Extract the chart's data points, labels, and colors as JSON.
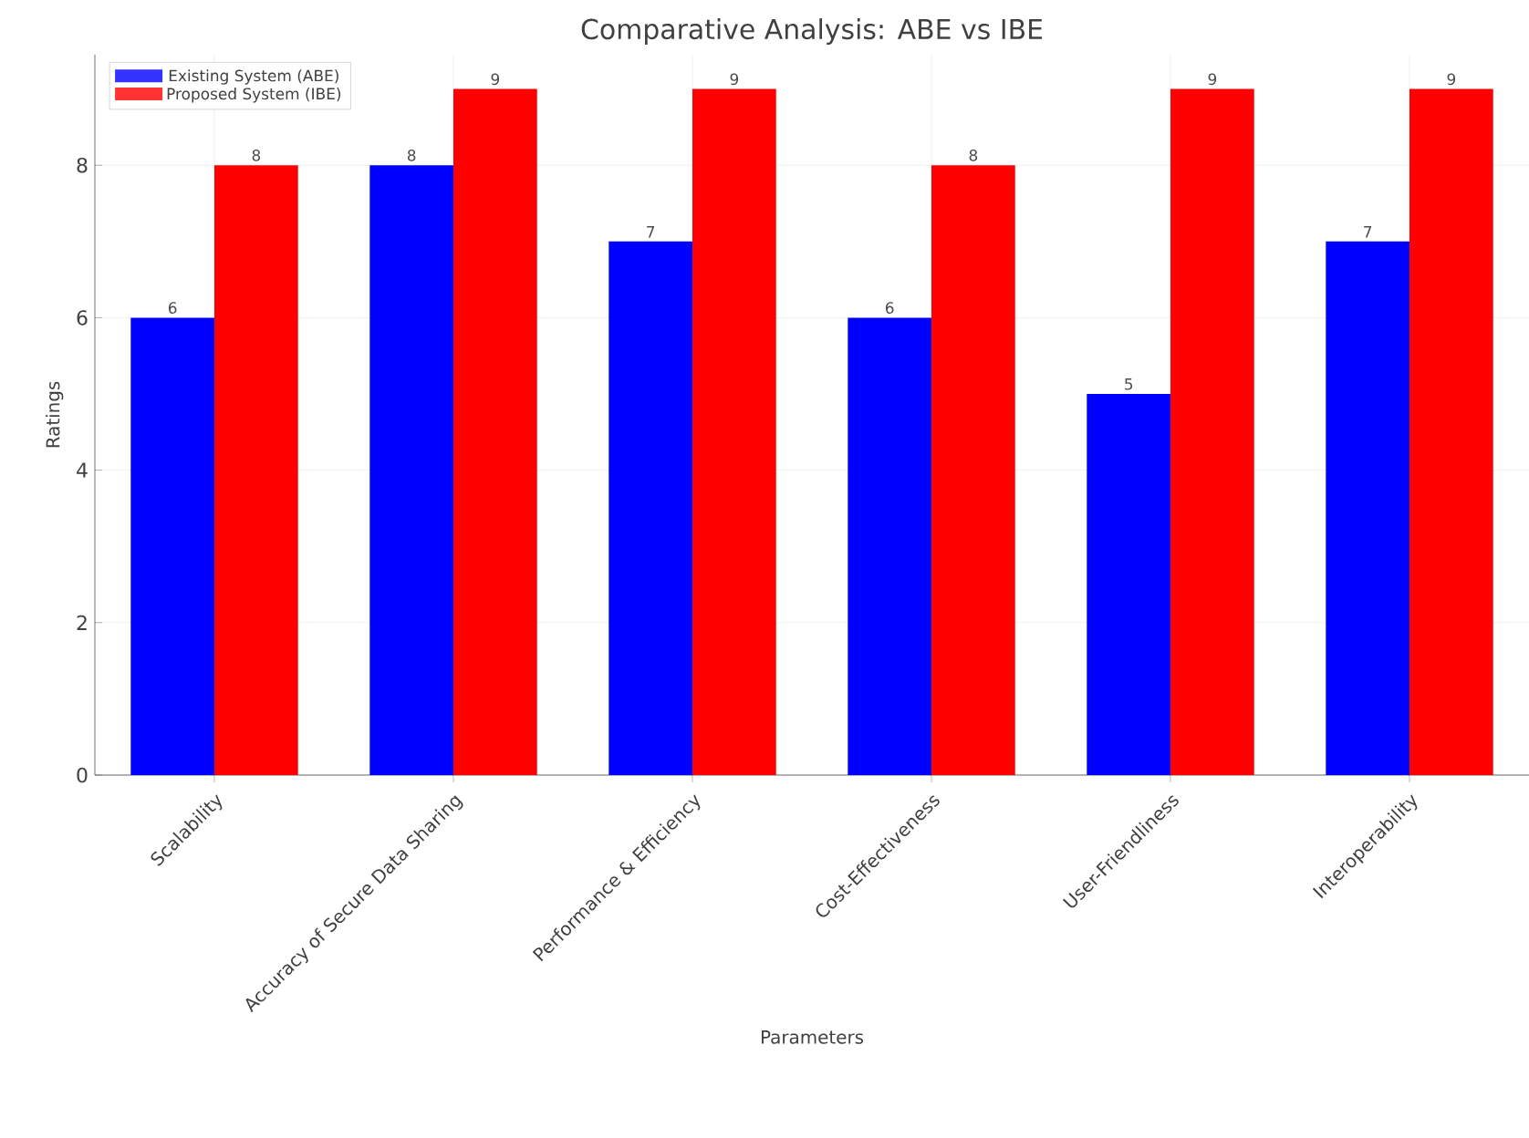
{
  "chart_data": {
    "type": "bar",
    "title": "Comparative Analysis: ABE vs IBE",
    "xlabel": "Parameters",
    "ylabel": "Ratings",
    "categories": [
      "Scalability",
      "Accuracy of Secure Data Sharing",
      "Performance & Efficiency",
      "Cost-Effectiveness",
      "User-Friendliness",
      "Interoperability"
    ],
    "series": [
      {
        "name": "Existing System (ABE)",
        "color": "#0000ff",
        "values": [
          6,
          8,
          7,
          6,
          5,
          7
        ]
      },
      {
        "name": "Proposed System (IBE)",
        "color": "#ff0000",
        "values": [
          8,
          9,
          9,
          8,
          9,
          9
        ]
      }
    ],
    "ylim": [
      0,
      9.45
    ],
    "yticks": [
      0,
      2,
      4,
      6,
      8
    ],
    "grid": true,
    "legend": "top left",
    "data_labels": true
  }
}
